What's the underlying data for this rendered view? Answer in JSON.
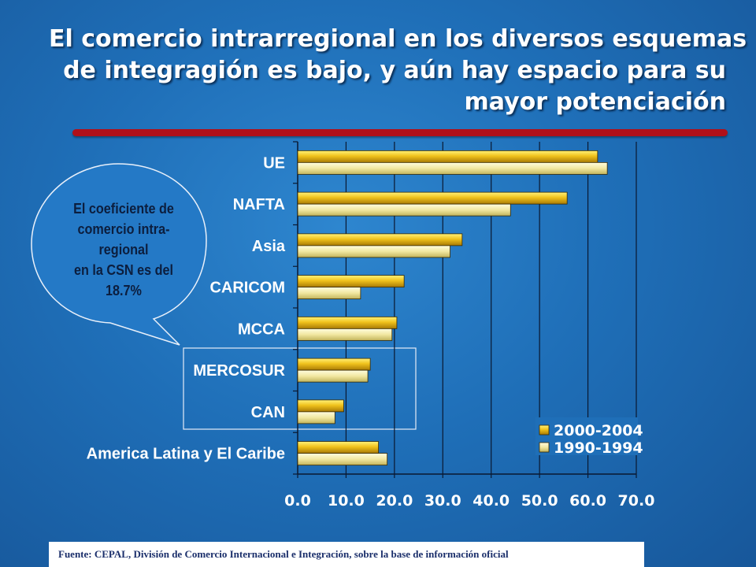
{
  "title_lines": [
    "El comercio intrarregional en los diversos esquemas",
    "de integragión es bajo, y aún hay espacio para su",
    "mayor potenciación"
  ],
  "callout": {
    "lines": [
      "El coeficiente de",
      "comercio intra-",
      "regional",
      "en la CSN es del",
      "18.7%"
    ]
  },
  "source_note": "Fuente: CEPAL, División de Comercio Internacional e Integración, sobre la base de información oficial",
  "colors": {
    "series_recent": "#e8b00f",
    "series_old": "#f3eaa0",
    "highlight_box": "#e6ecf7",
    "callout_fill": "#2479c6"
  },
  "chart_data": {
    "type": "bar",
    "orientation": "horizontal",
    "categories": [
      "UE",
      "NAFTA",
      "Asia",
      "CARICOM",
      "MCCA",
      "MERCOSUR",
      "CAN",
      "America Latina y El Caribe"
    ],
    "series": [
      {
        "name": "2000-2004",
        "values": [
          62.0,
          55.7,
          34.0,
          22.0,
          20.5,
          15.0,
          9.5,
          16.7
        ]
      },
      {
        "name": "1990-1994",
        "values": [
          64.0,
          44.0,
          31.5,
          13.0,
          19.5,
          14.5,
          7.7,
          18.5
        ]
      }
    ],
    "xlim": [
      0,
      70
    ],
    "xticks": [
      "0.0",
      "10.0",
      "20.0",
      "30.0",
      "40.0",
      "50.0",
      "60.0",
      "70.0"
    ],
    "gridlines": "vertical",
    "legend": "bottom-right",
    "highlighted_categories": [
      "MERCOSUR",
      "CAN"
    ]
  }
}
